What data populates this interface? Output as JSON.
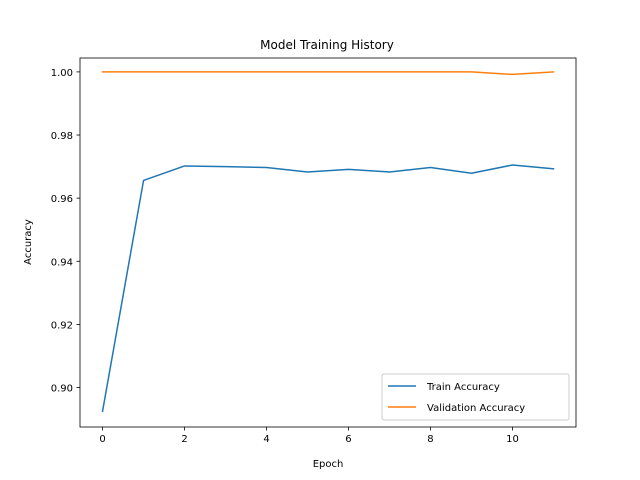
{
  "chart_data": {
    "type": "line",
    "title": "Model Training History",
    "xlabel": "Epoch",
    "ylabel": "Accuracy",
    "x": [
      0,
      1,
      2,
      3,
      4,
      5,
      6,
      7,
      8,
      9,
      10,
      11
    ],
    "xlim": [
      -0.55,
      11.55
    ],
    "ylim": [
      0.8875,
      1.0044
    ],
    "xticks": [
      0,
      2,
      4,
      6,
      8,
      10
    ],
    "xtick_labels": [
      "0",
      "2",
      "4",
      "6",
      "8",
      "10"
    ],
    "yticks": [
      0.9,
      0.92,
      0.94,
      0.96,
      0.98,
      1.0
    ],
    "ytick_labels": [
      "0.90",
      "0.92",
      "0.94",
      "0.96",
      "0.98",
      "1.00"
    ],
    "grid": false,
    "legend_position": "lower-right",
    "series": [
      {
        "name": "Train Accuracy",
        "color": "#1f77b4",
        "values": [
          0.8925,
          0.9656,
          0.9702,
          0.97,
          0.9697,
          0.9683,
          0.9691,
          0.9683,
          0.9697,
          0.9679,
          0.9705,
          0.9693
        ]
      },
      {
        "name": "Validation Accuracy",
        "color": "#ff7f0e",
        "values": [
          1.0,
          1.0,
          1.0,
          1.0,
          1.0,
          1.0,
          1.0,
          1.0,
          1.0,
          1.0,
          0.9992,
          1.0
        ]
      }
    ]
  }
}
